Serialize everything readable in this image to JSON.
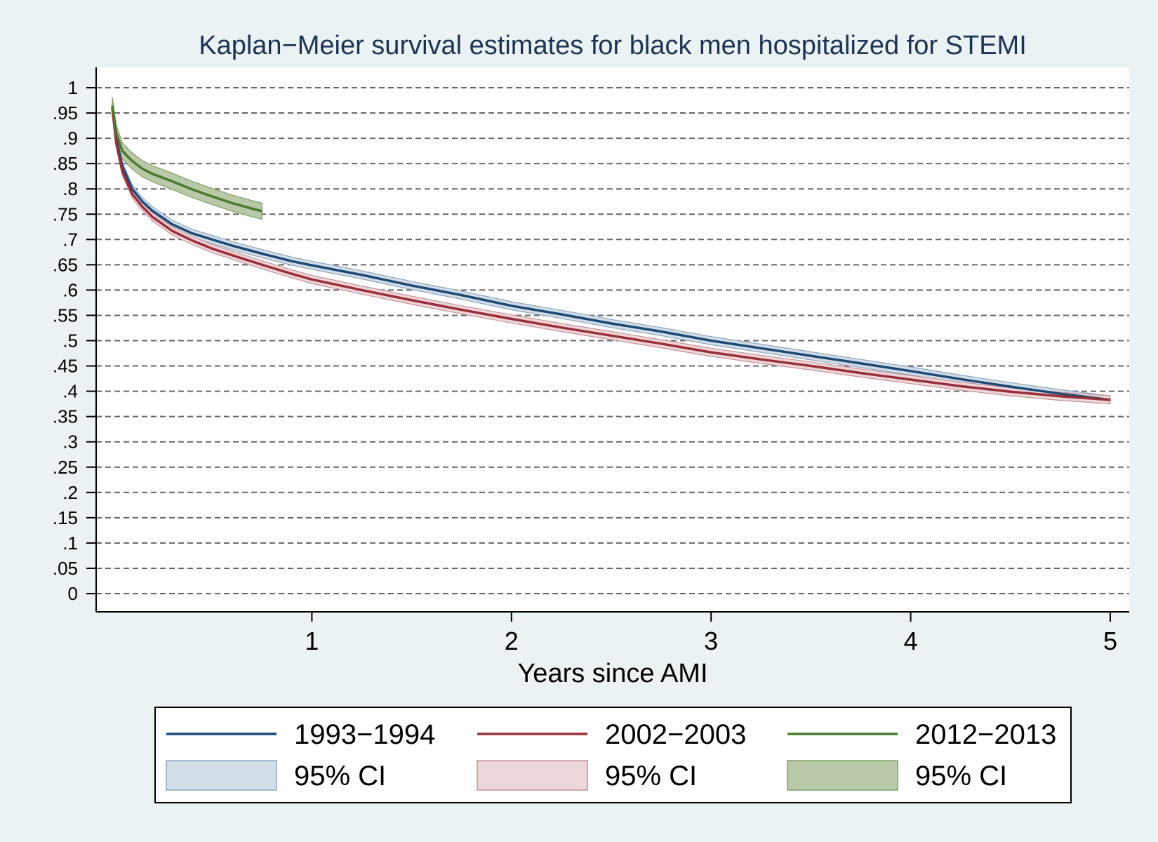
{
  "chart_data": {
    "type": "line",
    "title": "Kaplan−Meier survival estimates for black men hospitalized for STEMI",
    "xlabel": "Years since AMI",
    "ylabel": "",
    "xlim": [
      0,
      5
    ],
    "ylim": [
      0,
      1
    ],
    "x_ticks": [
      1,
      2,
      3,
      4,
      5
    ],
    "y_ticks": [
      {
        "value": 0,
        "label": "0"
      },
      {
        "value": 0.05,
        "label": ".05"
      },
      {
        "value": 0.1,
        "label": ".1"
      },
      {
        "value": 0.15,
        "label": ".15"
      },
      {
        "value": 0.2,
        "label": ".2"
      },
      {
        "value": 0.25,
        "label": ".25"
      },
      {
        "value": 0.3,
        "label": ".3"
      },
      {
        "value": 0.35,
        "label": ".35"
      },
      {
        "value": 0.4,
        "label": ".4"
      },
      {
        "value": 0.45,
        "label": ".45"
      },
      {
        "value": 0.5,
        "label": ".5"
      },
      {
        "value": 0.55,
        "label": ".55"
      },
      {
        "value": 0.6,
        "label": ".6"
      },
      {
        "value": 0.65,
        "label": ".65"
      },
      {
        "value": 0.7,
        "label": ".7"
      },
      {
        "value": 0.75,
        "label": ".75"
      },
      {
        "value": 0.8,
        "label": ".8"
      },
      {
        "value": 0.85,
        "label": ".85"
      },
      {
        "value": 0.9,
        "label": ".9"
      },
      {
        "value": 0.95,
        "label": ".95"
      },
      {
        "value": 1,
        "label": "1"
      }
    ],
    "grid": true,
    "legend_position": "bottom",
    "ci_label": "95% CI",
    "series": [
      {
        "name": "1993−1994",
        "color": "#1c4a78",
        "ci_fill": "#d3dde6",
        "ci_stroke": "#8ea6bd",
        "x": [
          0,
          0.02,
          0.05,
          0.1,
          0.15,
          0.2,
          0.3,
          0.4,
          0.5,
          0.6,
          0.75,
          0.9,
          1.0,
          1.25,
          1.5,
          1.75,
          2.0,
          2.25,
          2.5,
          2.75,
          3.0,
          3.25,
          3.5,
          3.75,
          4.0,
          4.25,
          4.5,
          4.75,
          5.0
        ],
        "y": [
          0.96,
          0.9,
          0.845,
          0.8,
          0.775,
          0.757,
          0.73,
          0.712,
          0.7,
          0.688,
          0.672,
          0.657,
          0.649,
          0.63,
          0.609,
          0.59,
          0.569,
          0.552,
          0.534,
          0.518,
          0.5,
          0.485,
          0.47,
          0.455,
          0.44,
          0.424,
          0.409,
          0.395,
          0.383
        ],
        "ci_halfwidth": 0.008
      },
      {
        "name": "2002−2003",
        "color": "#992f3a",
        "ci_fill": "#ecd6d8",
        "ci_stroke": "#c9929a",
        "x": [
          0,
          0.02,
          0.05,
          0.1,
          0.15,
          0.2,
          0.3,
          0.4,
          0.5,
          0.6,
          0.75,
          0.9,
          1.0,
          1.25,
          1.5,
          1.75,
          2.0,
          2.25,
          2.5,
          2.75,
          3.0,
          3.25,
          3.5,
          3.75,
          4.0,
          4.25,
          4.5,
          4.75,
          5.0
        ],
        "y": [
          0.96,
          0.89,
          0.835,
          0.79,
          0.765,
          0.745,
          0.717,
          0.698,
          0.682,
          0.669,
          0.65,
          0.632,
          0.621,
          0.6,
          0.58,
          0.561,
          0.543,
          0.526,
          0.51,
          0.494,
          0.477,
          0.463,
          0.45,
          0.436,
          0.423,
          0.41,
          0.399,
          0.39,
          0.383
        ],
        "ci_halfwidth": 0.008
      },
      {
        "name": "2012−2013",
        "color": "#4a7a2e",
        "ci_fill": "#b9c9a8",
        "ci_stroke": "#7f9e68",
        "x": [
          0,
          0.02,
          0.05,
          0.1,
          0.15,
          0.2,
          0.3,
          0.4,
          0.5,
          0.6,
          0.7,
          0.75
        ],
        "y": [
          0.965,
          0.91,
          0.875,
          0.855,
          0.84,
          0.83,
          0.815,
          0.799,
          0.785,
          0.772,
          0.761,
          0.756
        ],
        "ci_halfwidth": 0.016
      }
    ]
  }
}
